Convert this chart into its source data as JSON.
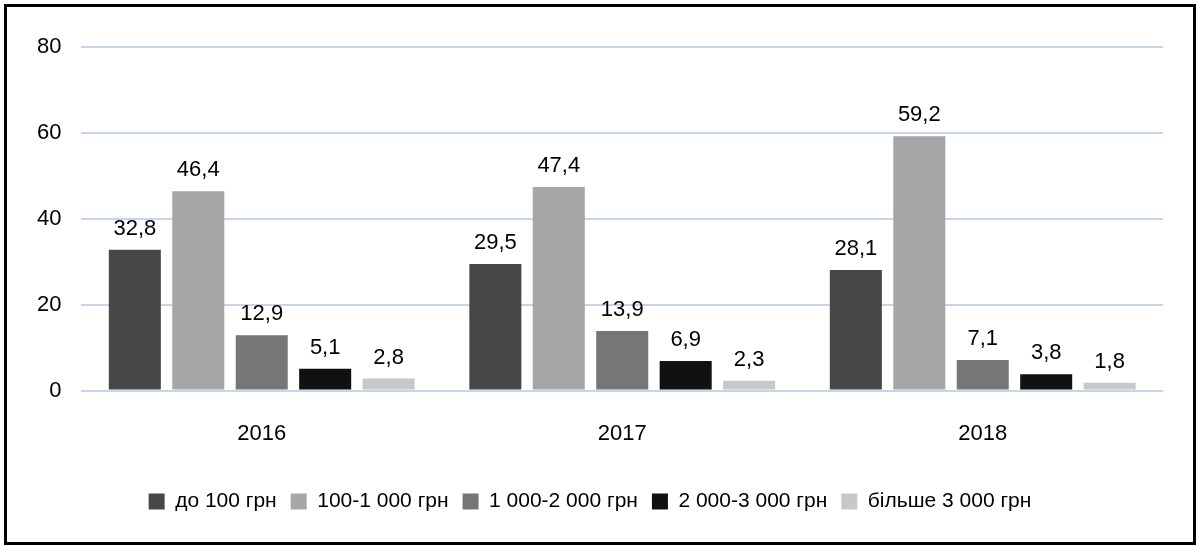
{
  "chart_data": {
    "type": "bar",
    "categories": [
      "2016",
      "2017",
      "2018"
    ],
    "series": [
      {
        "name": "до 100 грн",
        "color": "#474747",
        "values": [
          32.8,
          29.5,
          28.1
        ],
        "value_labels": [
          "32,8",
          "29,5",
          "28,1"
        ]
      },
      {
        "name": "100-1 000 грн",
        "color": "#a6a6a6",
        "values": [
          46.4,
          47.4,
          59.2
        ],
        "value_labels": [
          "46,4",
          "47,4",
          "59,2"
        ]
      },
      {
        "name": "1 000-2 000 грн",
        "color": "#767676",
        "values": [
          12.9,
          13.9,
          7.1
        ],
        "value_labels": [
          "12,9",
          "13,9",
          "7,1"
        ]
      },
      {
        "name": "2 000-3 000 грн",
        "color": "#111111",
        "values": [
          5.1,
          6.9,
          3.8
        ],
        "value_labels": [
          "5,1",
          "6,9",
          "3,8"
        ]
      },
      {
        "name": "більше 3 000 грн",
        "color": "#c8c8c8",
        "values": [
          2.8,
          2.3,
          1.8
        ],
        "value_labels": [
          "2,8",
          "2,3",
          "1,8"
        ]
      }
    ],
    "ylim": [
      0,
      80
    ],
    "yticks": [
      0,
      20,
      40,
      60,
      80
    ],
    "grid": "y",
    "legend": "bottom"
  }
}
